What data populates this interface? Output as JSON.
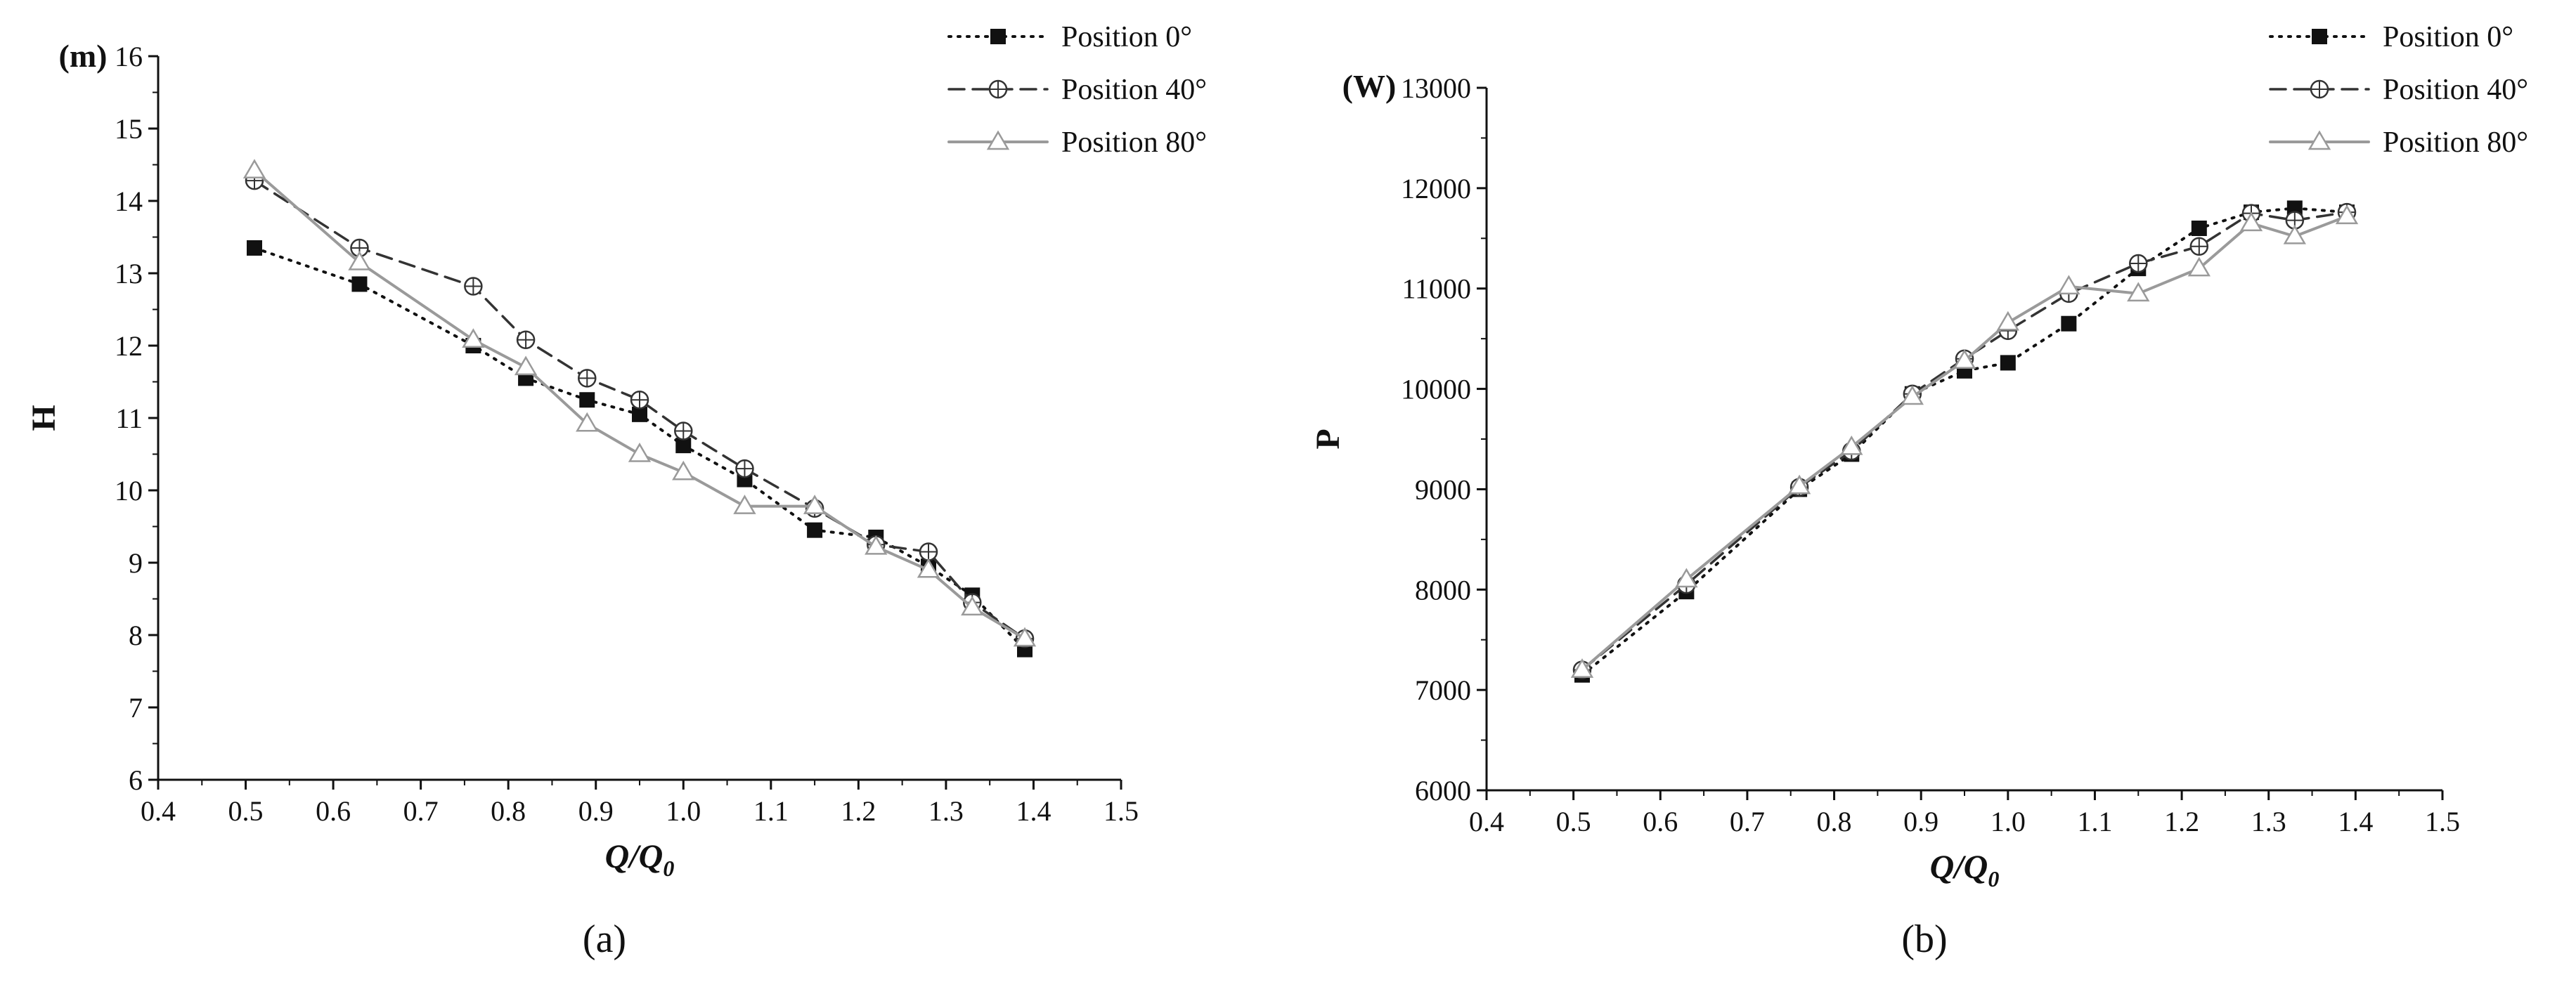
{
  "chart_data": [
    {
      "type": "line",
      "panel_label": "(a)",
      "xlabel_main": "Q/Q",
      "xlabel_sub": "0",
      "ylabel": "H",
      "yunit": "(m)",
      "xlim": [
        0.4,
        1.5
      ],
      "ylim": [
        6,
        16
      ],
      "xticks": [
        0.4,
        0.5,
        0.6,
        0.7,
        0.8,
        0.9,
        1.0,
        1.1,
        1.2,
        1.3,
        1.4,
        1.5
      ],
      "xtick_labels": [
        "0.4",
        "0.5",
        "0.6",
        "0.7",
        "0.8",
        "0.9",
        "1.0",
        "1.1",
        "1.2",
        "1.3",
        "1.4",
        "1.5"
      ],
      "yticks": [
        6,
        7,
        8,
        9,
        10,
        11,
        12,
        13,
        14,
        15,
        16
      ],
      "ytick_labels": [
        "6",
        "7",
        "8",
        "9",
        "10",
        "11",
        "12",
        "13",
        "14",
        "15",
        "16"
      ],
      "legend_position": "top-right",
      "grid": false,
      "series": [
        {
          "name": "Position 0°",
          "style": "dotted",
          "marker": "filled-square",
          "x": [
            0.51,
            0.63,
            0.76,
            0.82,
            0.89,
            0.95,
            1.0,
            1.07,
            1.15,
            1.22,
            1.28,
            1.33,
            1.39
          ],
          "y": [
            13.35,
            12.85,
            12.0,
            11.55,
            11.25,
            11.05,
            10.62,
            10.15,
            9.45,
            9.35,
            8.95,
            8.55,
            7.8
          ]
        },
        {
          "name": "Position 40°",
          "style": "dashed",
          "marker": "crossed-circle",
          "x": [
            0.51,
            0.63,
            0.76,
            0.82,
            0.89,
            0.95,
            1.0,
            1.07,
            1.15,
            1.22,
            1.28,
            1.33,
            1.39
          ],
          "y": [
            14.28,
            13.35,
            12.82,
            12.08,
            11.55,
            11.25,
            10.82,
            10.3,
            9.75,
            9.25,
            9.15,
            8.45,
            7.95
          ]
        },
        {
          "name": "Position 80°",
          "style": "solid",
          "marker": "open-triangle",
          "x": [
            0.51,
            0.63,
            0.76,
            0.82,
            0.89,
            0.95,
            1.0,
            1.07,
            1.15,
            1.22,
            1.28,
            1.33,
            1.39
          ],
          "y": [
            14.42,
            13.15,
            12.08,
            11.7,
            10.92,
            10.5,
            10.25,
            9.78,
            9.78,
            9.22,
            8.9,
            8.38,
            7.95
          ]
        }
      ]
    },
    {
      "type": "line",
      "panel_label": "(b)",
      "xlabel_main": "Q/Q",
      "xlabel_sub": "0",
      "ylabel": "P",
      "yunit": "(W)",
      "xlim": [
        0.4,
        1.5
      ],
      "ylim": [
        6000,
        13000
      ],
      "xticks": [
        0.4,
        0.5,
        0.6,
        0.7,
        0.8,
        0.9,
        1.0,
        1.1,
        1.2,
        1.3,
        1.4,
        1.5
      ],
      "xtick_labels": [
        "0.4",
        "0.5",
        "0.6",
        "0.7",
        "0.8",
        "0.9",
        "1.0",
        "1.1",
        "1.2",
        "1.3",
        "1.4",
        "1.5"
      ],
      "yticks": [
        6000,
        7000,
        8000,
        9000,
        10000,
        11000,
        12000,
        13000
      ],
      "ytick_labels": [
        "6000",
        "7000",
        "8000",
        "9000",
        "10000",
        "11000",
        "12000",
        "13000"
      ],
      "legend_position": "top-right",
      "grid": false,
      "series": [
        {
          "name": "Position 0°",
          "style": "dotted",
          "marker": "filled-square",
          "x": [
            0.51,
            0.63,
            0.76,
            0.82,
            0.89,
            0.95,
            1.0,
            1.07,
            1.15,
            1.22,
            1.28,
            1.33,
            1.39
          ],
          "y": [
            7150,
            7980,
            9000,
            9350,
            9950,
            10180,
            10260,
            10650,
            11200,
            11600,
            11760,
            11800,
            11760
          ]
        },
        {
          "name": "Position 40°",
          "style": "dashed",
          "marker": "crossed-circle",
          "x": [
            0.51,
            0.63,
            0.76,
            0.82,
            0.89,
            0.95,
            1.0,
            1.07,
            1.15,
            1.22,
            1.28,
            1.33,
            1.39
          ],
          "y": [
            7200,
            8050,
            9020,
            9380,
            9950,
            10300,
            10580,
            10950,
            11250,
            11420,
            11750,
            11680,
            11760
          ]
        },
        {
          "name": "Position 80°",
          "style": "solid",
          "marker": "open-triangle",
          "x": [
            0.51,
            0.63,
            0.76,
            0.82,
            0.89,
            0.95,
            1.0,
            1.07,
            1.15,
            1.22,
            1.28,
            1.33,
            1.39
          ],
          "y": [
            7200,
            8100,
            9030,
            9420,
            9920,
            10280,
            10660,
            11020,
            10950,
            11200,
            11650,
            11520,
            11720
          ]
        }
      ]
    }
  ],
  "colors": {
    "series_0": "#111111",
    "series_40": "#333333",
    "series_80": "#9a9a9a",
    "axis": "#111111",
    "marker_fill_open": "#ffffff"
  }
}
